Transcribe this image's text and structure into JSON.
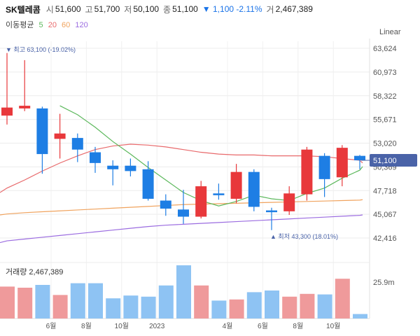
{
  "header": {
    "name": "SK텔레콤",
    "open_label": "시",
    "open": "51,600",
    "high_label": "고",
    "high": "51,700",
    "low_label": "저",
    "low": "50,100",
    "close_label": "종",
    "close": "51,100",
    "change": "▼ 1,100 -2.11%",
    "volume_label": "거",
    "volume": "2,467,389"
  },
  "ma_legend": {
    "title": "이동평균",
    "periods": [
      {
        "label": "5",
        "color": "#5cb85c"
      },
      {
        "label": "20",
        "color": "#e8696b"
      },
      {
        "label": "60",
        "color": "#f0a35e"
      },
      {
        "label": "120",
        "color": "#9b6ce0"
      }
    ]
  },
  "scale_label": "Linear",
  "colors": {
    "up": "#e8383b",
    "down": "#1e7ee4",
    "vol_up": "#ef9a9b",
    "vol_down": "#8ec3f3",
    "accent": "#4a63a8"
  },
  "chart_data": {
    "type": "candlestick",
    "price_axis": {
      "min": 42416,
      "max": 63624,
      "ticks": [
        "63,624",
        "60,973",
        "58,322",
        "55,671",
        "53,020",
        "50,369",
        "47,718",
        "45,067",
        "42,416"
      ]
    },
    "current_price": "51,100",
    "high_annotation": "최고 63,100 (-19.02%)",
    "low_annotation": "최저 43,300 (18.01%)",
    "volume_label": "거래량 2,467,389",
    "volume_axis_label": "25.9m",
    "x_ticks": [
      {
        "label": "6월",
        "index": 2
      },
      {
        "label": "8월",
        "index": 4
      },
      {
        "label": "10월",
        "index": 6
      },
      {
        "label": "2023",
        "index": 8
      },
      {
        "label": "4월",
        "index": 12
      },
      {
        "label": "6월",
        "index": 14
      },
      {
        "label": "8월",
        "index": 16
      },
      {
        "label": "10월",
        "index": 18
      }
    ],
    "candles": [
      {
        "o": 56100,
        "c": 57000,
        "h": 63100,
        "l": 55100
      },
      {
        "o": 56900,
        "c": 57200,
        "h": 62300,
        "l": 56600
      },
      {
        "o": 56900,
        "c": 51800,
        "h": 57100,
        "l": 49600
      },
      {
        "o": 53500,
        "c": 54100,
        "h": 56300,
        "l": 51300
      },
      {
        "o": 53600,
        "c": 52300,
        "h": 54100,
        "l": 50900
      },
      {
        "o": 52000,
        "c": 50800,
        "h": 52600,
        "l": 49700
      },
      {
        "o": 50500,
        "c": 50100,
        "h": 51100,
        "l": 48300
      },
      {
        "o": 50500,
        "c": 49900,
        "h": 51300,
        "l": 49300
      },
      {
        "o": 50100,
        "c": 46800,
        "h": 51000,
        "l": 46600
      },
      {
        "o": 46600,
        "c": 45700,
        "h": 47300,
        "l": 44900
      },
      {
        "o": 45600,
        "c": 44800,
        "h": 47800,
        "l": 44000
      },
      {
        "o": 44800,
        "c": 48200,
        "h": 48800,
        "l": 44600
      },
      {
        "o": 47400,
        "c": 47200,
        "h": 48500,
        "l": 46700
      },
      {
        "o": 46800,
        "c": 49800,
        "h": 50700,
        "l": 46300
      },
      {
        "o": 49800,
        "c": 45900,
        "h": 50100,
        "l": 45400
      },
      {
        "o": 45500,
        "c": 45300,
        "h": 45800,
        "l": 43300
      },
      {
        "o": 45400,
        "c": 47400,
        "h": 48200,
        "l": 45000
      },
      {
        "o": 47300,
        "c": 52300,
        "h": 52600,
        "l": 46600
      },
      {
        "o": 51600,
        "c": 49000,
        "h": 51900,
        "l": 47000
      },
      {
        "o": 49200,
        "c": 52500,
        "h": 52800,
        "l": 48200
      },
      {
        "o": 51600,
        "c": 51100,
        "h": 51700,
        "l": 50100
      }
    ],
    "volumes": [
      {
        "v": 0.57,
        "up": true
      },
      {
        "v": 0.55,
        "up": true
      },
      {
        "v": 0.6,
        "up": false
      },
      {
        "v": 0.42,
        "up": true
      },
      {
        "v": 0.63,
        "up": false
      },
      {
        "v": 0.63,
        "up": false
      },
      {
        "v": 0.36,
        "up": false
      },
      {
        "v": 0.41,
        "up": false
      },
      {
        "v": 0.39,
        "up": false
      },
      {
        "v": 0.59,
        "up": false
      },
      {
        "v": 0.95,
        "up": false
      },
      {
        "v": 0.59,
        "up": true
      },
      {
        "v": 0.32,
        "up": false
      },
      {
        "v": 0.34,
        "up": true
      },
      {
        "v": 0.47,
        "up": false
      },
      {
        "v": 0.5,
        "up": false
      },
      {
        "v": 0.39,
        "up": true
      },
      {
        "v": 0.44,
        "up": true
      },
      {
        "v": 0.43,
        "up": false
      },
      {
        "v": 0.71,
        "up": true
      },
      {
        "v": 0.08,
        "up": false
      }
    ],
    "ma5": [
      null,
      null,
      null,
      57200,
      56200,
      54800,
      53200,
      51800,
      50300,
      48900,
      47500,
      46600,
      46000,
      46500,
      47200,
      46800,
      46600,
      47400,
      48000,
      49100,
      50000
    ],
    "ma20": [
      48000,
      48900,
      49900,
      50800,
      51600,
      52300,
      52700,
      52900,
      52800,
      52600,
      52300,
      52000,
      51800,
      51700,
      51700,
      51600,
      51600,
      51600,
      51500,
      51300,
      51100
    ],
    "ma60": [
      45100,
      45250,
      45350,
      45450,
      45550,
      45650,
      45750,
      45850,
      45950,
      46050,
      46150,
      46200,
      46250,
      46300,
      46350,
      46400,
      46450,
      46500,
      46550,
      46600,
      46650
    ],
    "ma120": [
      42100,
      42300,
      42500,
      42700,
      42900,
      43100,
      43300,
      43500,
      43700,
      43850,
      43950,
      44050,
      44150,
      44250,
      44350,
      44450,
      44550,
      44650,
      44750,
      44850,
      44950
    ]
  }
}
